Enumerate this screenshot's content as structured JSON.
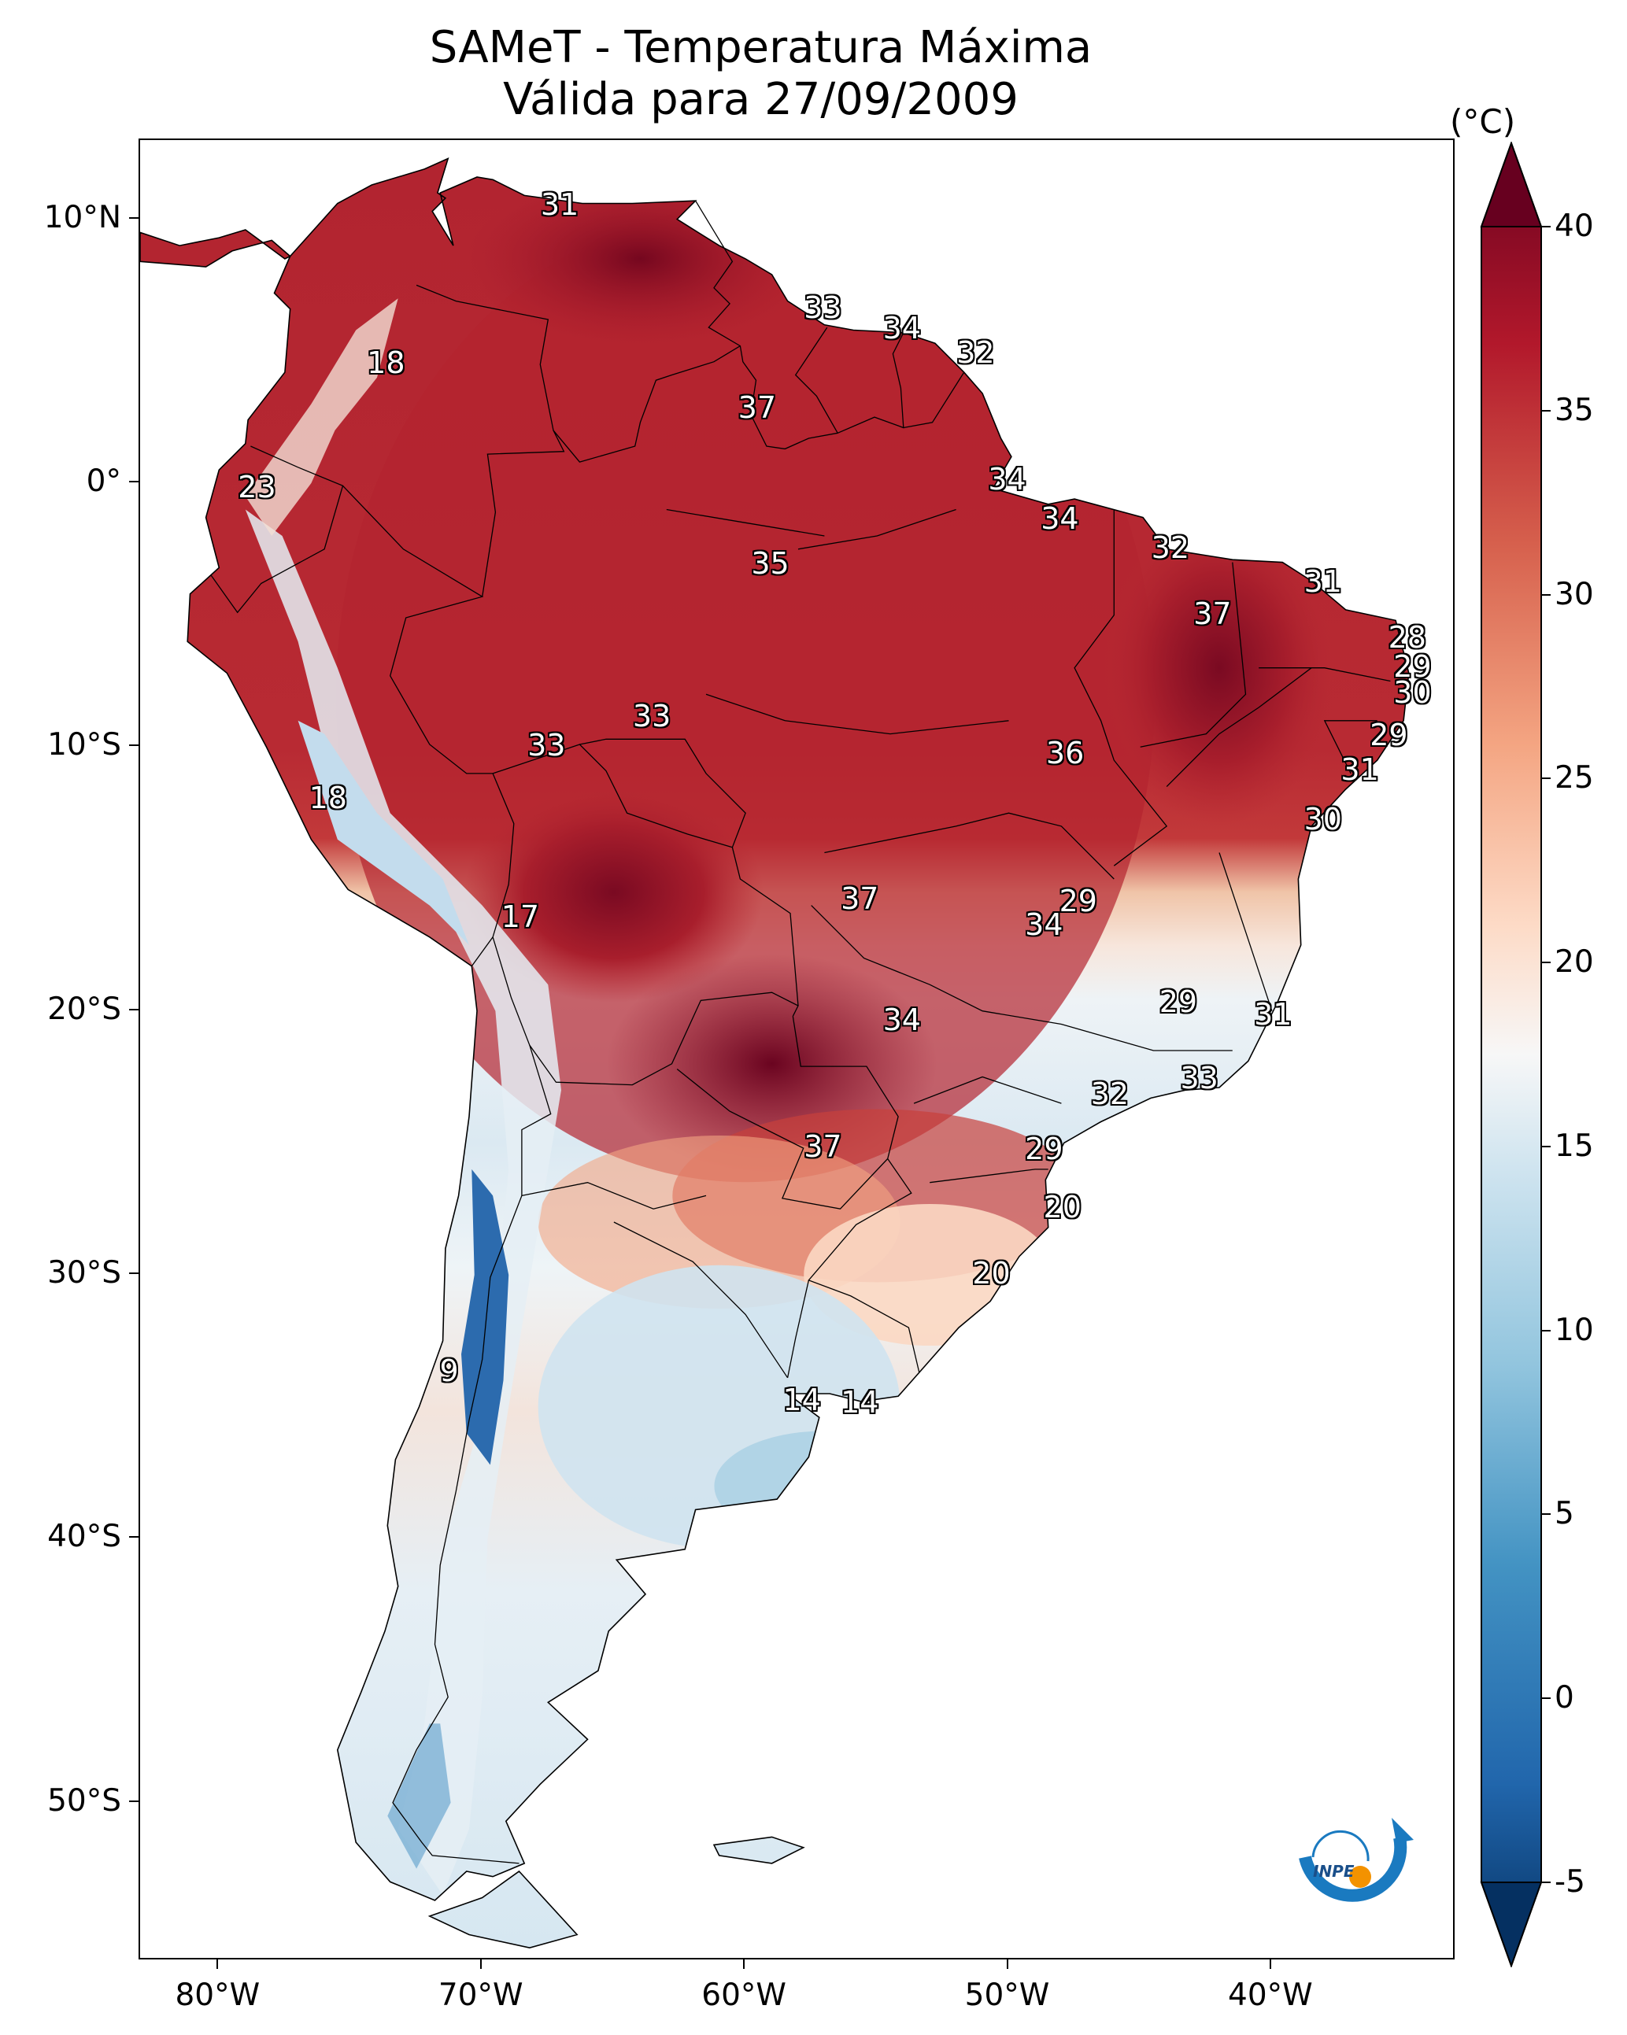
{
  "title": {
    "line1": "SAMeT - Temperatura Máxima",
    "line2": "Válida para 27/09/2009"
  },
  "colorbar": {
    "unit": "(°C)",
    "ticks": [
      "40",
      "35",
      "30",
      "25",
      "20",
      "15",
      "10",
      "5",
      "0",
      "-5"
    ],
    "range": [
      -5,
      40
    ],
    "colormap": "RdBu_r",
    "colors": {
      "high": "#67001f",
      "warm": "#d6604d",
      "neutral": "#f7f7f7",
      "cool": "#92c5de",
      "low": "#053061"
    }
  },
  "axes": {
    "lon_ticks": [
      "80°W",
      "70°W",
      "60°W",
      "50°W",
      "40°W"
    ],
    "lat_ticks": [
      "10°N",
      "0°",
      "10°S",
      "20°S",
      "30°S",
      "40°S",
      "50°S"
    ]
  },
  "values": [
    {
      "text": "31",
      "lon": -67,
      "lat": 10.5
    },
    {
      "text": "18",
      "lon": -73.6,
      "lat": 4.5
    },
    {
      "text": "33",
      "lon": -57,
      "lat": 6.6
    },
    {
      "text": "34",
      "lon": -54,
      "lat": 5.8
    },
    {
      "text": "32",
      "lon": -51.2,
      "lat": 4.9
    },
    {
      "text": "37",
      "lon": -59.5,
      "lat": 2.8
    },
    {
      "text": "23",
      "lon": -78.5,
      "lat": -0.2
    },
    {
      "text": "34",
      "lon": -50,
      "lat": 0.1
    },
    {
      "text": "34",
      "lon": -48,
      "lat": -1.4
    },
    {
      "text": "32",
      "lon": -43.8,
      "lat": -2.5
    },
    {
      "text": "35",
      "lon": -59,
      "lat": -3.1
    },
    {
      "text": "31",
      "lon": -38,
      "lat": -3.8
    },
    {
      "text": "37",
      "lon": -42.2,
      "lat": -5
    },
    {
      "text": "28",
      "lon": -34.8,
      "lat": -5.9
    },
    {
      "text": "29",
      "lon": -34.6,
      "lat": -7
    },
    {
      "text": "30",
      "lon": -34.6,
      "lat": -8
    },
    {
      "text": "33",
      "lon": -63.5,
      "lat": -8.9
    },
    {
      "text": "33",
      "lon": -67.5,
      "lat": -10
    },
    {
      "text": "29",
      "lon": -35.5,
      "lat": -9.6
    },
    {
      "text": "36",
      "lon": -47.8,
      "lat": -10.3
    },
    {
      "text": "31",
      "lon": -36.6,
      "lat": -10.9
    },
    {
      "text": "18",
      "lon": -75.8,
      "lat": -12
    },
    {
      "text": "30",
      "lon": -38,
      "lat": -12.8
    },
    {
      "text": "37",
      "lon": -55.6,
      "lat": -15.8
    },
    {
      "text": "29",
      "lon": -47.3,
      "lat": -15.9
    },
    {
      "text": "17",
      "lon": -68.5,
      "lat": -16.5
    },
    {
      "text": "34",
      "lon": -48.6,
      "lat": -16.8
    },
    {
      "text": "29",
      "lon": -43.5,
      "lat": -19.7
    },
    {
      "text": "31",
      "lon": -39.9,
      "lat": -20.2
    },
    {
      "text": "34",
      "lon": -54,
      "lat": -20.4
    },
    {
      "text": "33",
      "lon": -42.7,
      "lat": -22.6
    },
    {
      "text": "32",
      "lon": -46.1,
      "lat": -23.2
    },
    {
      "text": "37",
      "lon": -57,
      "lat": -25.2
    },
    {
      "text": "29",
      "lon": -48.6,
      "lat": -25.3
    },
    {
      "text": "20",
      "lon": -47.9,
      "lat": -27.5
    },
    {
      "text": "20",
      "lon": -50.6,
      "lat": -30
    },
    {
      "text": "9",
      "lon": -71.2,
      "lat": -33.7
    },
    {
      "text": "14",
      "lon": -57.8,
      "lat": -34.8
    },
    {
      "text": "14",
      "lon": -55.6,
      "lat": -34.9
    }
  ],
  "logo": {
    "text": "INPE",
    "icon": "inpe-logo-icon"
  }
}
